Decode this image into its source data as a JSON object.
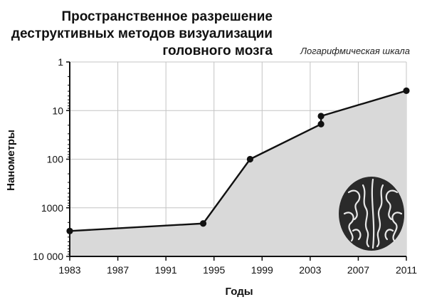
{
  "chart_data": {
    "type": "line",
    "title_lines": [
      "Пространственное разрешение",
      "деструктивных методов визуализации",
      "головного мозга"
    ],
    "scale_note": "Логарифмическая шкала",
    "xlabel": "Годы",
    "ylabel": "Нанометры",
    "y_scale": "log",
    "y_inverted": true,
    "ylim": [
      1,
      10000
    ],
    "y_ticks": [
      {
        "value": 1,
        "label": "1"
      },
      {
        "value": 10,
        "label": "10"
      },
      {
        "value": 100,
        "label": "100"
      },
      {
        "value": 1000,
        "label": "1000"
      },
      {
        "value": 10000,
        "label": "10 000"
      }
    ],
    "xlim": [
      1983,
      2011
    ],
    "x_ticks": [
      1983,
      1987,
      1991,
      1995,
      1999,
      2003,
      2007,
      2011
    ],
    "x_tick_labels": [
      "1983",
      "1987",
      "1991",
      "1995",
      "1999",
      "2003",
      "2007",
      "2011"
    ],
    "grid": true,
    "area_fill": true,
    "series": [
      {
        "points": [
          {
            "x": 1983,
            "y": 3000
          },
          {
            "x": 1994.1,
            "y": 2100
          },
          {
            "x": 1998,
            "y": 100
          },
          {
            "x": 2003.9,
            "y": 19
          },
          {
            "x": 2003.9,
            "y": 13
          },
          {
            "x": 2011,
            "y": 3.9
          }
        ]
      }
    ],
    "icon": "brain-icon"
  },
  "colors": {
    "line": "#111111",
    "area": "#d9d9d9",
    "grid": "#c4c4c4",
    "axis": "#111111",
    "brain": "#2a2a2a",
    "brain_lines": "#e8e8e8"
  }
}
